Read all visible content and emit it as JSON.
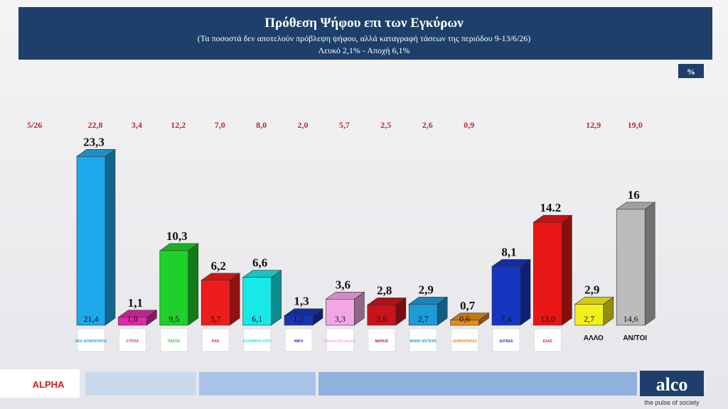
{
  "chart_data": {
    "type": "bar3d",
    "title": "Πρόθεση Ψήφου επι των Εγκύρων",
    "subtitle": "(Τα ποσοστά δεν αποτελούν πρόβλεψη ψήφου, αλλά καταγραφή τάσεων της περιόδου  9-13/6/26)",
    "note": "Λευκό 2,1% - Αποχή 6,1%",
    "unit_badge": "%",
    "previous_label": "5/26",
    "previous": [
      "22,8",
      "3,4",
      "12,2",
      "7,0",
      "8,0",
      "2,0",
      "5,7",
      "2,5",
      "2,6",
      "0,9",
      null,
      null,
      "12,9",
      "19,0"
    ],
    "categories": [
      "ΝΕΑ ΔΗΜΟΚΡΑΤΙΑ",
      "ΣΥΡΙΖΑ",
      "ΠΑΣΟΚ",
      "ΚΚΕ",
      "ΕΛΛΗΝΙΚΗ ΛΥΣΗ",
      "ΝΙΚΗ",
      "Πλεύση Ελευθερίας",
      "ΜέΡΑ25",
      "ΦΩΝΗ ΛΟΓΙΚΗΣ",
      "ΔΗΜΟΚΡΑΤΕΣ",
      "ΕΛΠΙΔΑ",
      "ΕΛΑΣ",
      "ΑΛΛΟ",
      "ΑΝ/ΤΟΙ"
    ],
    "values": [
      23.3,
      1.1,
      10.3,
      6.2,
      6.6,
      1.3,
      3.6,
      2.8,
      2.9,
      0.7,
      8.1,
      14.2,
      2.9,
      16
    ],
    "value_labels": [
      "23,3",
      "1,1",
      "10,3",
      "6,2",
      "6,6",
      "1,3",
      "3,6",
      "2,8",
      "2,9",
      "0,7",
      "8,1",
      "14.2",
      "2,9",
      "16"
    ],
    "base_labels": [
      "21,4",
      "1,0",
      "9,5",
      "5,7",
      "6,1",
      "1,2",
      "3,3",
      "2,6",
      "2,7",
      "0,6",
      "7,4",
      "13,0",
      "2,7",
      "14,6"
    ],
    "colors": [
      "#1ea8ec",
      "#e02aa8",
      "#1fcf2a",
      "#ee1d1d",
      "#17e8e8",
      "#1a34b0",
      "#f3a6e3",
      "#c8141c",
      "#1f9ad8",
      "#e88a17",
      "#1535c2",
      "#e81616",
      "#f3ef1a",
      "#bcbcbc"
    ],
    "brand": "alco",
    "tagline": "the pulse of society",
    "channel": "ALPHA"
  }
}
